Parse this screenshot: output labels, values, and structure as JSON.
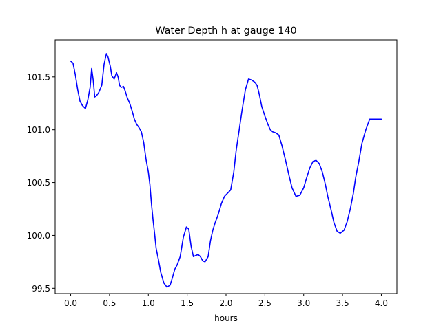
{
  "chart_data": {
    "type": "line",
    "title": "Water Depth h at gauge 140",
    "xlabel": "hours",
    "ylabel": "",
    "xlim": [
      -0.2,
      4.2
    ],
    "ylim": [
      99.45,
      101.85
    ],
    "xticks": [
      0.0,
      0.5,
      1.0,
      1.5,
      2.0,
      2.5,
      3.0,
      3.5,
      4.0
    ],
    "xtick_labels": [
      "0.0",
      "0.5",
      "1.0",
      "1.5",
      "2.0",
      "2.5",
      "3.0",
      "3.5",
      "4.0"
    ],
    "yticks": [
      99.5,
      100.0,
      100.5,
      101.0,
      101.5
    ],
    "ytick_labels": [
      "99.5",
      "100.0",
      "100.5",
      "101.0",
      "101.5"
    ],
    "grid": false,
    "line_color": "#0000ff",
    "series": [
      {
        "x": [
          0.0,
          0.03,
          0.06,
          0.09,
          0.12,
          0.15,
          0.19,
          0.22,
          0.25,
          0.27,
          0.29,
          0.31,
          0.33,
          0.36,
          0.4,
          0.43,
          0.46,
          0.48,
          0.51,
          0.53,
          0.56,
          0.59,
          0.61,
          0.63,
          0.65,
          0.68,
          0.7,
          0.73,
          0.76,
          0.79,
          0.82,
          0.85,
          0.88,
          0.91,
          0.94,
          0.97,
          1.0,
          1.02,
          1.04,
          1.06,
          1.08,
          1.1,
          1.13,
          1.16,
          1.2,
          1.24,
          1.28,
          1.31,
          1.34,
          1.37,
          1.41,
          1.45,
          1.49,
          1.52,
          1.55,
          1.58,
          1.61,
          1.64,
          1.67,
          1.7,
          1.73,
          1.77,
          1.8,
          1.83,
          1.86,
          1.9,
          1.94,
          1.98,
          2.02,
          2.06,
          2.1,
          2.13,
          2.17,
          2.21,
          2.25,
          2.29,
          2.33,
          2.37,
          2.4,
          2.43,
          2.46,
          2.5,
          2.54,
          2.57,
          2.6,
          2.64,
          2.68,
          2.72,
          2.77,
          2.81,
          2.85,
          2.9,
          2.95,
          3.0,
          3.04,
          3.08,
          3.12,
          3.16,
          3.2,
          3.24,
          3.28,
          3.31,
          3.35,
          3.39,
          3.43,
          3.47,
          3.52,
          3.56,
          3.6,
          3.64,
          3.67,
          3.71,
          3.75,
          3.8,
          3.85,
          3.9,
          3.95,
          4.0
        ],
        "y": [
          101.65,
          101.63,
          101.52,
          101.38,
          101.27,
          101.23,
          101.2,
          101.28,
          101.4,
          101.58,
          101.47,
          101.31,
          101.32,
          101.35,
          101.42,
          101.62,
          101.72,
          101.69,
          101.6,
          101.51,
          101.48,
          101.54,
          101.5,
          101.42,
          101.4,
          101.41,
          101.37,
          101.3,
          101.25,
          101.18,
          101.1,
          101.05,
          101.02,
          100.98,
          100.88,
          100.72,
          100.6,
          100.48,
          100.3,
          100.15,
          100.02,
          99.88,
          99.77,
          99.65,
          99.55,
          99.51,
          99.53,
          99.6,
          99.68,
          99.72,
          99.8,
          99.98,
          100.08,
          100.06,
          99.9,
          99.8,
          99.81,
          99.82,
          99.8,
          99.76,
          99.75,
          99.8,
          99.95,
          100.05,
          100.12,
          100.2,
          100.3,
          100.37,
          100.4,
          100.43,
          100.6,
          100.8,
          101.0,
          101.2,
          101.38,
          101.48,
          101.47,
          101.45,
          101.42,
          101.33,
          101.22,
          101.13,
          101.05,
          101.0,
          100.98,
          100.97,
          100.95,
          100.85,
          100.7,
          100.57,
          100.45,
          100.37,
          100.38,
          100.45,
          100.55,
          100.64,
          100.7,
          100.71,
          100.68,
          100.6,
          100.48,
          100.37,
          100.25,
          100.12,
          100.04,
          100.02,
          100.05,
          100.13,
          100.25,
          100.4,
          100.55,
          100.7,
          100.87,
          101.0,
          101.1,
          101.1,
          101.1,
          101.1
        ]
      }
    ]
  }
}
